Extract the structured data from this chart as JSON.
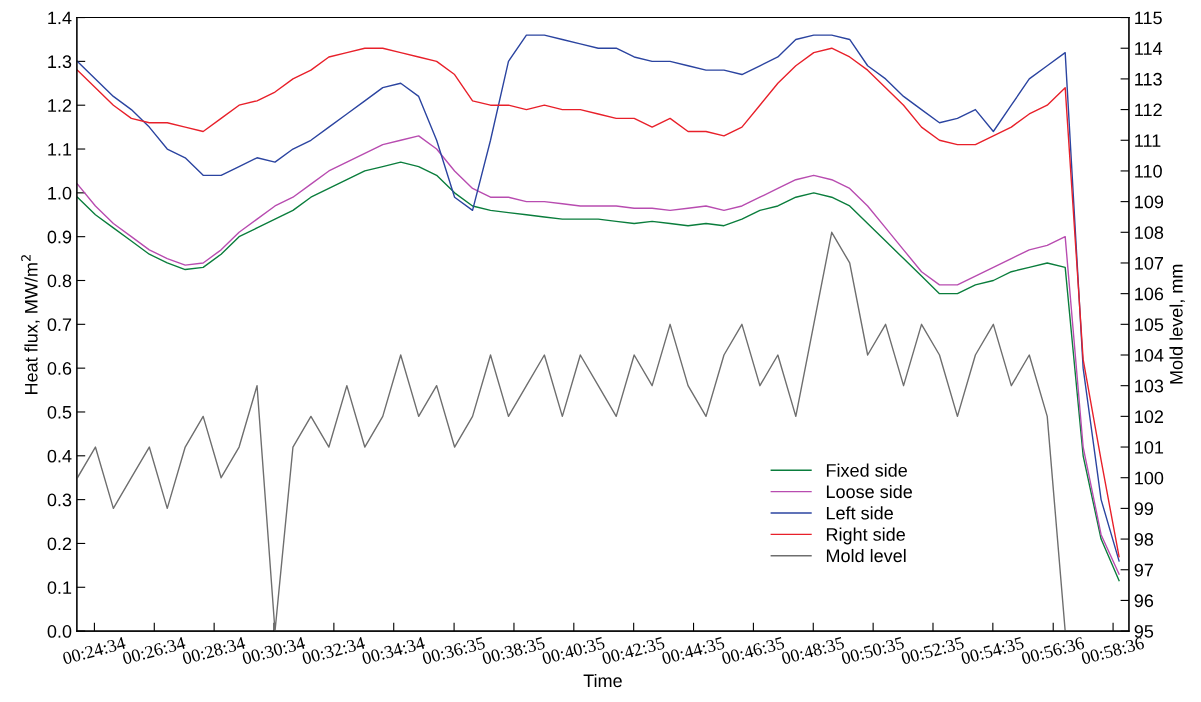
{
  "chart_data": {
    "type": "line",
    "xlabel": "Time",
    "ylabel": "Heat flux, MW/m$^{2}$",
    "y2label": "Mold level, mm",
    "x": [
      0.4,
      0.41,
      0.42,
      0.43,
      0.44,
      0.45,
      0.46,
      0.47,
      0.48,
      0.49,
      0.5,
      0.51,
      0.52,
      0.53,
      0.54,
      0.55,
      0.56,
      0.57,
      0.58,
      0.59,
      0.6,
      0.61,
      0.62,
      0.63,
      0.64,
      0.65,
      0.66,
      0.67,
      0.68,
      0.69,
      0.7,
      0.71,
      0.72,
      0.73,
      0.74,
      0.75,
      0.76,
      0.77,
      0.78,
      0.79,
      0.8,
      0.81,
      0.82,
      0.83,
      0.84,
      0.85,
      0.86,
      0.87,
      0.88,
      0.89,
      0.9,
      0.91,
      0.92,
      0.93,
      0.94,
      0.95,
      0.96,
      0.97,
      0.98
    ],
    "series": [
      {
        "name": "Fixed side",
        "color": "#0a7d3c",
        "values": [
          0.99,
          0.95,
          0.92,
          0.89,
          0.86,
          0.84,
          0.825,
          0.83,
          0.86,
          0.9,
          0.92,
          0.94,
          0.96,
          0.99,
          1.01,
          1.03,
          1.05,
          1.06,
          1.07,
          1.06,
          1.04,
          1.0,
          0.97,
          0.96,
          0.955,
          0.95,
          0.945,
          0.94,
          0.94,
          0.94,
          0.935,
          0.93,
          0.935,
          0.93,
          0.925,
          0.93,
          0.925,
          0.94,
          0.96,
          0.97,
          0.99,
          1.0,
          0.99,
          0.97,
          0.93,
          0.89,
          0.85,
          0.81,
          0.77,
          0.77,
          0.79,
          0.8,
          0.82,
          0.83,
          0.84,
          0.83,
          0.4,
          0.21,
          0.115
        ]
      },
      {
        "name": "Loose side",
        "color": "#b84cb0",
        "values": [
          1.02,
          0.97,
          0.93,
          0.9,
          0.87,
          0.85,
          0.835,
          0.84,
          0.87,
          0.91,
          0.94,
          0.97,
          0.99,
          1.02,
          1.05,
          1.07,
          1.09,
          1.11,
          1.12,
          1.13,
          1.1,
          1.05,
          1.01,
          0.99,
          0.99,
          0.98,
          0.98,
          0.975,
          0.97,
          0.97,
          0.97,
          0.965,
          0.965,
          0.96,
          0.965,
          0.97,
          0.96,
          0.97,
          0.99,
          1.01,
          1.03,
          1.04,
          1.03,
          1.01,
          0.97,
          0.92,
          0.87,
          0.82,
          0.79,
          0.79,
          0.81,
          0.83,
          0.85,
          0.87,
          0.88,
          0.9,
          0.42,
          0.22,
          0.13
        ]
      },
      {
        "name": "Left side",
        "color": "#2b44a0",
        "values": [
          1.3,
          1.26,
          1.22,
          1.19,
          1.15,
          1.1,
          1.08,
          1.04,
          1.04,
          1.06,
          1.08,
          1.07,
          1.1,
          1.12,
          1.15,
          1.18,
          1.21,
          1.24,
          1.25,
          1.22,
          1.12,
          0.99,
          0.96,
          1.12,
          1.3,
          1.36,
          1.36,
          1.35,
          1.34,
          1.33,
          1.33,
          1.31,
          1.3,
          1.3,
          1.29,
          1.28,
          1.28,
          1.27,
          1.29,
          1.31,
          1.35,
          1.36,
          1.36,
          1.35,
          1.29,
          1.26,
          1.22,
          1.19,
          1.16,
          1.17,
          1.19,
          1.14,
          1.2,
          1.26,
          1.29,
          1.32,
          0.6,
          0.3,
          0.16
        ]
      },
      {
        "name": "Right side",
        "color": "#e8202a",
        "values": [
          1.28,
          1.24,
          1.2,
          1.17,
          1.16,
          1.16,
          1.15,
          1.14,
          1.17,
          1.2,
          1.21,
          1.23,
          1.26,
          1.28,
          1.31,
          1.32,
          1.33,
          1.33,
          1.32,
          1.31,
          1.3,
          1.27,
          1.21,
          1.2,
          1.2,
          1.19,
          1.2,
          1.19,
          1.19,
          1.18,
          1.17,
          1.17,
          1.15,
          1.17,
          1.14,
          1.14,
          1.13,
          1.15,
          1.2,
          1.25,
          1.29,
          1.32,
          1.33,
          1.31,
          1.28,
          1.24,
          1.2,
          1.15,
          1.12,
          1.11,
          1.11,
          1.13,
          1.15,
          1.18,
          1.2,
          1.24,
          0.62,
          0.39,
          0.17
        ]
      },
      {
        "name": "Mold level",
        "color": "#6e6e6e",
        "axis": "y2",
        "values": [
          100,
          101,
          99,
          100,
          101,
          99,
          101,
          102,
          100,
          101,
          103,
          95,
          101,
          102,
          101,
          103,
          101,
          102,
          104,
          102,
          103,
          101,
          102,
          104,
          102,
          103,
          104,
          102,
          104,
          103,
          102,
          104,
          103,
          105,
          103,
          102,
          104,
          105,
          103,
          104,
          102,
          105,
          108,
          107,
          104,
          105,
          103,
          105,
          104,
          102,
          104,
          105,
          103,
          104,
          102,
          95,
          null,
          null,
          null
        ]
      }
    ],
    "xlim": [
      0.39967,
      0.9855
    ],
    "xticks": [
      {
        "value": 0.40944,
        "label": "00:24:34"
      },
      {
        "value": 0.44278,
        "label": "00:26:34"
      },
      {
        "value": 0.47611,
        "label": "00:28:34"
      },
      {
        "value": 0.50944,
        "label": "00:30:34"
      },
      {
        "value": 0.54278,
        "label": "00:32:34"
      },
      {
        "value": 0.57611,
        "label": "00:34:34"
      },
      {
        "value": 0.60972,
        "label": "00:36:35"
      },
      {
        "value": 0.64306,
        "label": "00:38:35"
      },
      {
        "value": 0.67639,
        "label": "00:40:35"
      },
      {
        "value": 0.70972,
        "label": "00:42:35"
      },
      {
        "value": 0.74306,
        "label": "00:44:35"
      },
      {
        "value": 0.77639,
        "label": "00:46:35"
      },
      {
        "value": 0.80972,
        "label": "00:48:35"
      },
      {
        "value": 0.84306,
        "label": "00:50:35"
      },
      {
        "value": 0.87639,
        "label": "00:52:35"
      },
      {
        "value": 0.90972,
        "label": "00:54:35"
      },
      {
        "value": 0.94333,
        "label": "00:56:36"
      },
      {
        "value": 0.97667,
        "label": "00:58:36"
      }
    ],
    "ylim": [
      0,
      1.4
    ],
    "yticks": [
      {
        "value": 0,
        "label": "0.0"
      },
      {
        "value": 0.1,
        "label": "0.1"
      },
      {
        "value": 0.2,
        "label": "0.2"
      },
      {
        "value": 0.3,
        "label": "0.3"
      },
      {
        "value": 0.4,
        "label": "0.4"
      },
      {
        "value": 0.5,
        "label": "0.5"
      },
      {
        "value": 0.6,
        "label": "0.6"
      },
      {
        "value": 0.7,
        "label": "0.7"
      },
      {
        "value": 0.8,
        "label": "0.8"
      },
      {
        "value": 0.9,
        "label": "0.9"
      },
      {
        "value": 1,
        "label": "1.0"
      },
      {
        "value": 1.1,
        "label": "1.1"
      },
      {
        "value": 1.2,
        "label": "1.2"
      },
      {
        "value": 1.3,
        "label": "1.3"
      },
      {
        "value": 1.4,
        "label": "1.4"
      }
    ],
    "y2lim": [
      95,
      115
    ],
    "y2ticks": [
      95,
      96,
      97,
      98,
      99,
      100,
      101,
      102,
      103,
      104,
      105,
      106,
      107,
      108,
      109,
      110,
      111,
      112,
      113,
      114,
      115
    ],
    "grid": false,
    "legend": "bottom right",
    "marker": "none",
    "line_style": "solid"
  }
}
